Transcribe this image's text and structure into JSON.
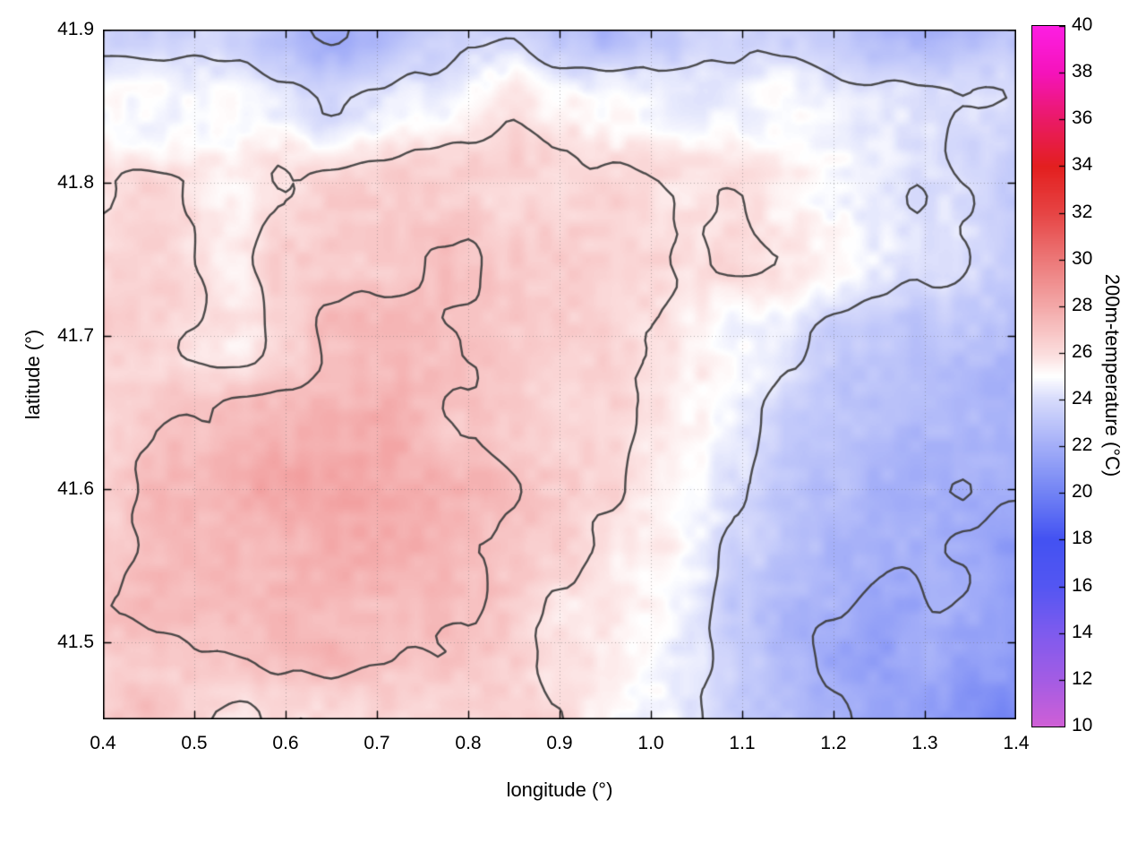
{
  "figure": {
    "background": "#ffffff"
  },
  "chart_data": {
    "type": "heatmap",
    "title": "",
    "xlabel": "longitude (°)",
    "ylabel": "latitude (°)",
    "colorbar_label": "200m-temperature (°C)",
    "x_range": [
      0.4,
      1.4
    ],
    "y_range": [
      41.45,
      41.9
    ],
    "x_ticks": [
      0.4,
      0.5,
      0.6,
      0.7,
      0.8,
      0.9,
      1.0,
      1.1,
      1.2,
      1.3,
      1.4
    ],
    "y_ticks": [
      41.5,
      41.6,
      41.7,
      41.8,
      41.9
    ],
    "grid_on": true,
    "colorbar_range": [
      10,
      40
    ],
    "colorbar_ticks": [
      10,
      12,
      14,
      16,
      18,
      20,
      22,
      24,
      26,
      28,
      30,
      32,
      34,
      36,
      38,
      40
    ],
    "colormap": [
      {
        "value": 10,
        "color": "#cf5fd6"
      },
      {
        "value": 12,
        "color": "#a35ce4"
      },
      {
        "value": 14,
        "color": "#7e5bee"
      },
      {
        "value": 16,
        "color": "#5356f2"
      },
      {
        "value": 18,
        "color": "#4352f2"
      },
      {
        "value": 20,
        "color": "#7283f4"
      },
      {
        "value": 22,
        "color": "#a3aef8"
      },
      {
        "value": 24,
        "color": "#d7dbfb"
      },
      {
        "value": 25,
        "color": "#ffffff"
      },
      {
        "value": 26,
        "color": "#fbdcdc"
      },
      {
        "value": 28,
        "color": "#f3a8a8"
      },
      {
        "value": 30,
        "color": "#ec7878"
      },
      {
        "value": 32,
        "color": "#e64444"
      },
      {
        "value": 34,
        "color": "#e31f1f"
      },
      {
        "value": 36,
        "color": "#ea1a66"
      },
      {
        "value": 38,
        "color": "#f513bb"
      },
      {
        "value": 40,
        "color": "#fd1ee3"
      }
    ],
    "contour_levels": [
      22,
      24,
      26,
      27
    ],
    "contour_color": "#3c3c3c",
    "grid": {
      "lon": [
        0.4,
        0.45,
        0.5,
        0.55,
        0.6,
        0.65,
        0.7,
        0.75,
        0.8,
        0.85,
        0.9,
        0.95,
        1.0,
        1.05,
        1.1,
        1.15,
        1.2,
        1.25,
        1.3,
        1.35,
        1.4
      ],
      "lat": [
        41.45,
        41.5,
        41.55,
        41.6,
        41.65,
        41.7,
        41.75,
        41.8,
        41.85,
        41.9
      ],
      "values": [
        [
          26.6,
          26.8,
          26.3,
          26.0,
          26.2,
          26.4,
          26.2,
          25.9,
          26.1,
          26.0,
          25.8,
          25.5,
          24.8,
          24.0,
          23.2,
          22.5,
          22.0,
          21.6,
          21.5,
          20.7,
          20.6
        ],
        [
          26.8,
          27.0,
          27.0,
          27.0,
          27.2,
          27.3,
          27.2,
          27.0,
          26.8,
          26.3,
          26.0,
          25.6,
          25.0,
          24.2,
          23.2,
          22.4,
          21.8,
          21.2,
          21.8,
          21.4,
          21.0
        ],
        [
          26.8,
          27.1,
          27.3,
          27.4,
          27.6,
          27.7,
          27.6,
          27.4,
          27.0,
          26.6,
          26.2,
          25.8,
          25.2,
          24.5,
          23.6,
          22.8,
          22.3,
          22.0,
          22.0,
          21.8,
          21.4
        ],
        [
          26.6,
          27.0,
          27.3,
          27.6,
          27.8,
          27.9,
          27.8,
          27.5,
          27.2,
          26.8,
          26.4,
          26.0,
          25.4,
          24.8,
          24.0,
          23.2,
          22.6,
          22.3,
          22.2,
          22.0,
          21.8
        ],
        [
          26.4,
          26.7,
          26.9,
          27.3,
          27.5,
          27.6,
          27.6,
          27.4,
          27.1,
          26.8,
          26.5,
          26.1,
          25.6,
          25.0,
          24.3,
          23.6,
          23.2,
          23.0,
          22.8,
          22.6,
          22.3
        ],
        [
          26.2,
          26.1,
          25.8,
          25.5,
          26.4,
          27.0,
          27.2,
          27.2,
          27.0,
          26.8,
          26.5,
          26.2,
          25.8,
          25.2,
          24.6,
          24.0,
          23.6,
          23.4,
          23.2,
          23.0,
          22.8
        ],
        [
          26.3,
          26.4,
          26.2,
          25.7,
          26.3,
          26.7,
          26.9,
          27.0,
          27.0,
          26.9,
          26.7,
          26.5,
          26.3,
          25.8,
          26.0,
          26.1,
          25.6,
          24.9,
          24.3,
          23.7,
          23.3
        ],
        [
          26.1,
          26.2,
          26.0,
          25.4,
          26.0,
          26.3,
          26.4,
          26.5,
          26.5,
          26.4,
          26.2,
          26.1,
          26.1,
          26.0,
          25.9,
          25.6,
          25.1,
          24.6,
          24.1,
          23.7,
          23.3
        ],
        [
          24.9,
          24.8,
          24.7,
          24.9,
          24.4,
          23.9,
          24.1,
          24.6,
          25.3,
          25.9,
          25.3,
          24.8,
          24.7,
          24.6,
          24.7,
          24.7,
          24.6,
          24.4,
          24.1,
          23.9,
          23.7
        ],
        [
          23.9,
          23.7,
          23.6,
          23.3,
          22.4,
          21.6,
          22.0,
          23.2,
          23.8,
          24.0,
          22.8,
          22.6,
          23.4,
          23.8,
          23.6,
          23.4,
          23.0,
          22.6,
          22.5,
          22.8,
          23.0
        ]
      ]
    },
    "noise": {
      "seed_coarse": 11,
      "seed_fine": 23,
      "amp_coarse": 0.4,
      "amp_fine": 0.35
    }
  }
}
